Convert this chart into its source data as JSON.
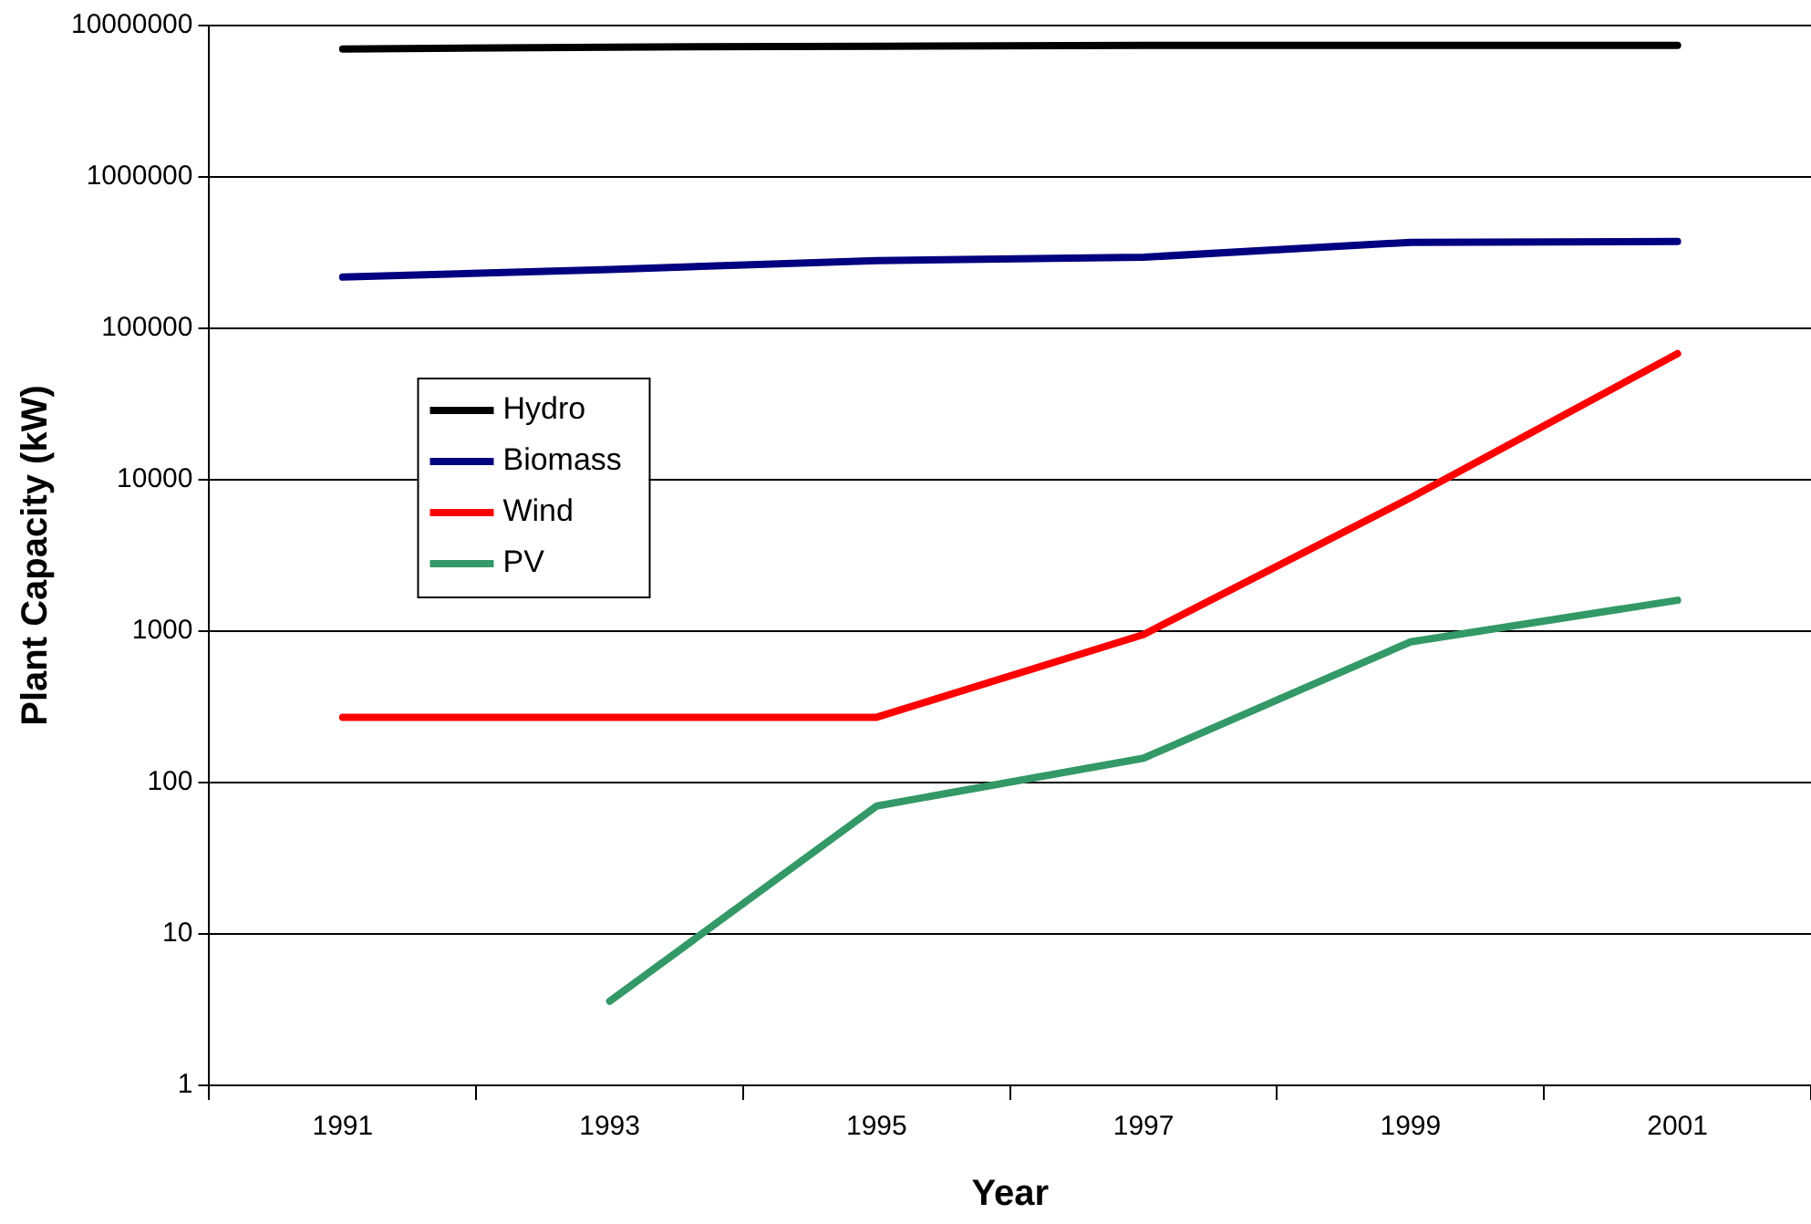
{
  "chart_data": {
    "type": "line",
    "xlabel": "Year",
    "ylabel": "Plant Capacity (kW)",
    "categories": [
      "1991",
      "1993",
      "1995",
      "1997",
      "1999",
      "2001"
    ],
    "series": [
      {
        "name": "Hydro",
        "color": "#000000",
        "values": [
          7000000,
          7200000,
          7300000,
          7400000,
          7400000,
          7400000
        ]
      },
      {
        "name": "Biomass",
        "color": "#000080",
        "values": [
          218000,
          245000,
          280000,
          295000,
          370000,
          375000
        ]
      },
      {
        "name": "Wind",
        "color": "#ff0000",
        "values": [
          270,
          270,
          270,
          950,
          7600,
          68000
        ]
      },
      {
        "name": "PV",
        "color": "#339966",
        "values": [
          null,
          3.6,
          70,
          145,
          850,
          1600
        ]
      }
    ],
    "log": "y",
    "ylim": [
      1,
      10000000
    ],
    "yticks": [
      1,
      10,
      100,
      1000,
      10000,
      100000,
      1000000,
      10000000
    ],
    "grid": "y",
    "legend": "left",
    "marker": "none",
    "line_style": "solid"
  }
}
